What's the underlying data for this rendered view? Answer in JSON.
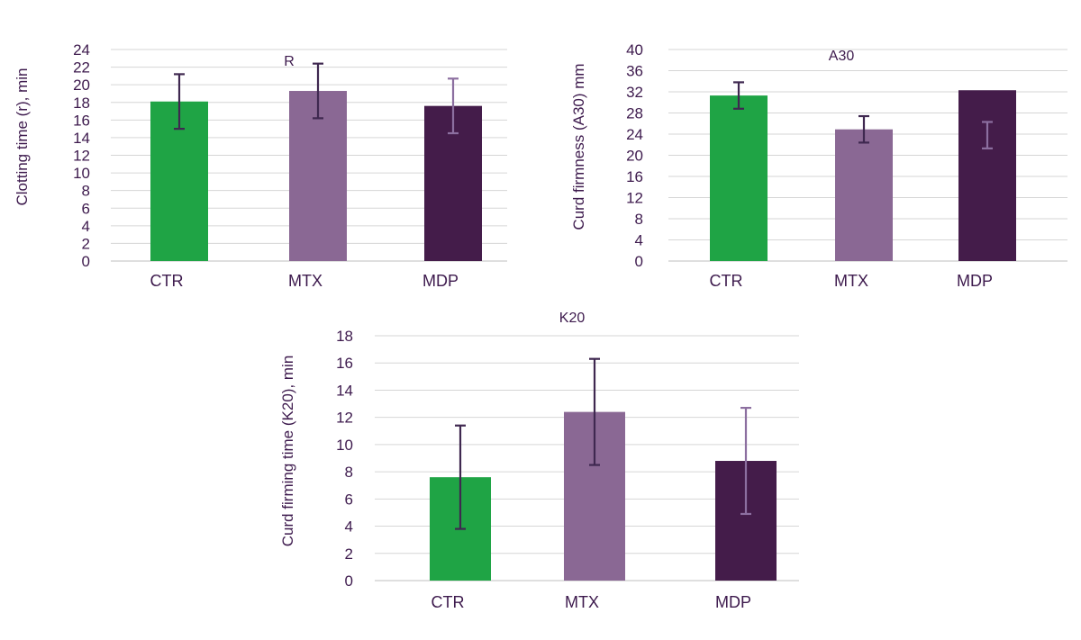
{
  "colors": {
    "CTR": "#1fa445",
    "MTX": "#8a6894",
    "MDP": "#441c4a",
    "error_dark": "#3f2850",
    "error_light": "#8c6fa0",
    "grid": "#d6d6d6",
    "text": "#3d1a4d"
  },
  "chart_data": [
    {
      "type": "bar",
      "title": "R",
      "ylabel": "Clotting time (r), min",
      "xlabel": "",
      "categories": [
        "CTR",
        "MTX",
        "MDP"
      ],
      "values": [
        18.1,
        19.3,
        17.6
      ],
      "error_bars": [
        3.1,
        3.1,
        3.1
      ],
      "ylim": [
        0,
        24
      ],
      "yticks": [
        0,
        2,
        4,
        6,
        8,
        10,
        12,
        14,
        16,
        18,
        20,
        22,
        24
      ],
      "grid": true,
      "legend": "none"
    },
    {
      "type": "bar",
      "title": "A30",
      "ylabel": "Curd firmness (A30) mm",
      "xlabel": "",
      "categories": [
        "CTR",
        "MTX",
        "MDP"
      ],
      "values": [
        31.3,
        24.9,
        32.3
      ],
      "error_bars": [
        2.5,
        2.5,
        2.5
      ],
      "error_centers": [
        31.3,
        24.9,
        23.8
      ],
      "ylim": [
        0,
        40
      ],
      "yticks": [
        0,
        4,
        8,
        12,
        16,
        20,
        24,
        28,
        32,
        36,
        40
      ],
      "grid": true,
      "legend": "none"
    },
    {
      "type": "bar",
      "title": "K20",
      "ylabel": "Curd firming time (K20), min",
      "xlabel": "",
      "categories": [
        "CTR",
        "MTX",
        "MDP"
      ],
      "values": [
        7.6,
        12.4,
        8.8
      ],
      "error_bars": [
        3.8,
        3.9,
        3.9
      ],
      "ylim": [
        0,
        18
      ],
      "yticks": [
        0,
        2,
        4,
        6,
        8,
        10,
        12,
        14,
        16,
        18
      ],
      "grid": true,
      "legend": "none"
    }
  ]
}
